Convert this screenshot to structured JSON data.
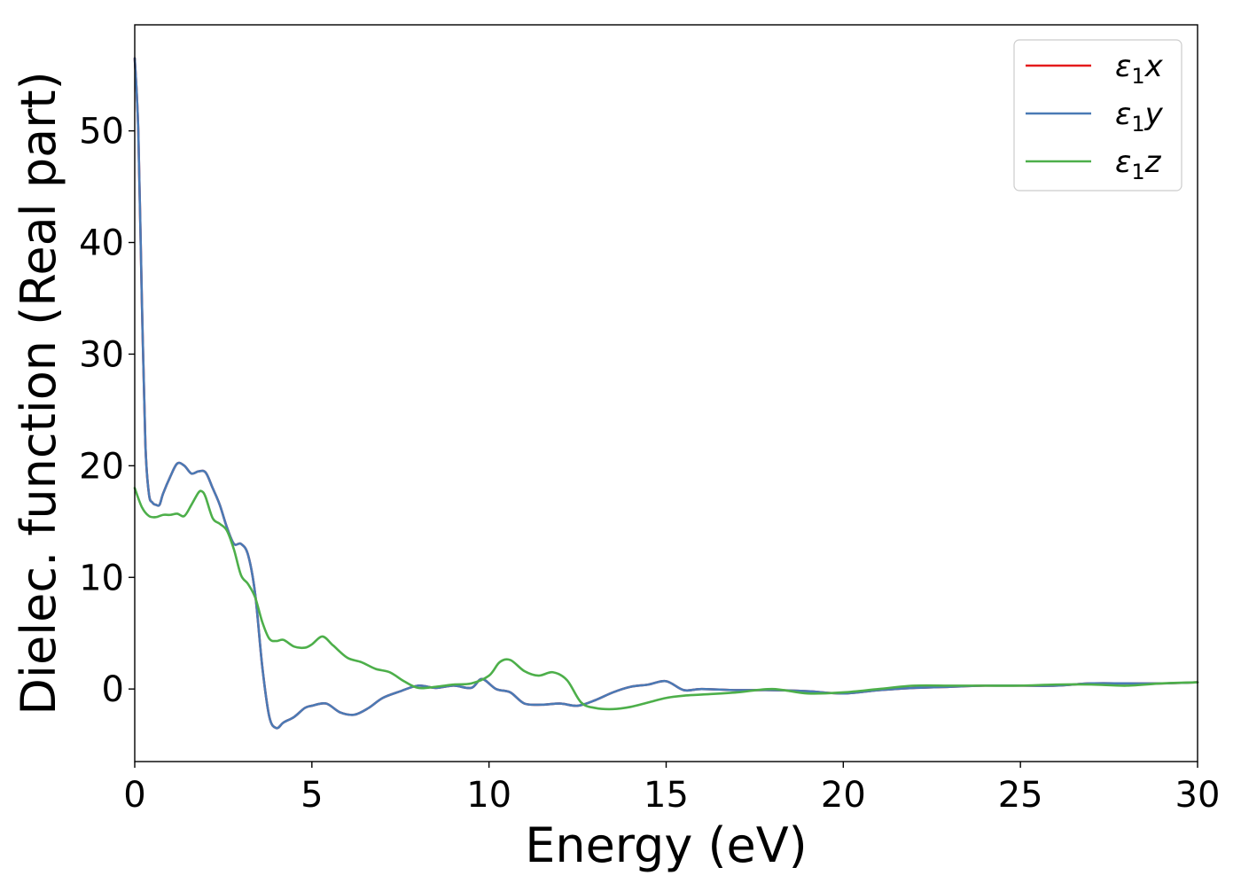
{
  "chart_data": {
    "type": "line",
    "title": "",
    "xlabel": "Energy (eV)",
    "ylabel": "Dielec. function (Real part)",
    "xlim": [
      0,
      30
    ],
    "ylim": [
      -6.5,
      59.5
    ],
    "xticks": [
      0,
      5,
      10,
      15,
      20,
      25,
      30
    ],
    "yticks": [
      0,
      10,
      20,
      30,
      40,
      50
    ],
    "grid": false,
    "legend_position": "top-right",
    "series": [
      {
        "name": "ε1x",
        "legend": {
          "main": "ε",
          "sub": "1",
          "axis": "x"
        },
        "color": "#e41a1c",
        "x": [
          0,
          0.1,
          0.2,
          0.3,
          0.4,
          0.5,
          0.6,
          0.7,
          0.8,
          1.0,
          1.2,
          1.4,
          1.6,
          1.8,
          2.0,
          2.2,
          2.4,
          2.6,
          2.8,
          3.0,
          3.2,
          3.4,
          3.6,
          3.8,
          4.0,
          4.2,
          4.5,
          4.8,
          5.0,
          5.4,
          5.8,
          6.2,
          6.6,
          7.0,
          7.5,
          8.0,
          8.5,
          9.0,
          9.5,
          9.8,
          10.2,
          10.6,
          11.0,
          11.5,
          12.0,
          12.5,
          13.0,
          13.5,
          14.0,
          14.5,
          15.0,
          15.5,
          16.0,
          17.0,
          18.0,
          19.0,
          20.0,
          21.0,
          22.0,
          23.0,
          24.0,
          25.0,
          26.0,
          27.0,
          28.0,
          29.0,
          30.0
        ],
        "y": [
          56.5,
          50,
          35,
          22,
          17.5,
          16.7,
          16.5,
          16.5,
          17.5,
          19.0,
          20.2,
          20.0,
          19.3,
          19.5,
          19.4,
          18.0,
          16.5,
          14.5,
          13.0,
          13.0,
          12.0,
          8.5,
          2.0,
          -2.5,
          -3.5,
          -3.0,
          -2.5,
          -1.7,
          -1.5,
          -1.3,
          -2.1,
          -2.3,
          -1.7,
          -0.8,
          -0.2,
          0.3,
          0.1,
          0.3,
          0.1,
          0.9,
          0.0,
          -0.3,
          -1.3,
          -1.4,
          -1.3,
          -1.5,
          -1.0,
          -0.3,
          0.2,
          0.4,
          0.7,
          -0.1,
          0.0,
          -0.1,
          -0.1,
          -0.2,
          -0.4,
          -0.1,
          0.1,
          0.2,
          0.3,
          0.3,
          0.3,
          0.5,
          0.5,
          0.5,
          0.6
        ]
      },
      {
        "name": "ε1y",
        "legend": {
          "main": "ε",
          "sub": "1",
          "axis": "y"
        },
        "color": "#4a7ab5",
        "x": [
          0,
          0.1,
          0.2,
          0.3,
          0.4,
          0.5,
          0.6,
          0.7,
          0.8,
          1.0,
          1.2,
          1.4,
          1.6,
          1.8,
          2.0,
          2.2,
          2.4,
          2.6,
          2.8,
          3.0,
          3.2,
          3.4,
          3.6,
          3.8,
          4.0,
          4.2,
          4.5,
          4.8,
          5.0,
          5.4,
          5.8,
          6.2,
          6.6,
          7.0,
          7.5,
          8.0,
          8.5,
          9.0,
          9.5,
          9.8,
          10.2,
          10.6,
          11.0,
          11.5,
          12.0,
          12.5,
          13.0,
          13.5,
          14.0,
          14.5,
          15.0,
          15.5,
          16.0,
          17.0,
          18.0,
          19.0,
          20.0,
          21.0,
          22.0,
          23.0,
          24.0,
          25.0,
          26.0,
          27.0,
          28.0,
          29.0,
          30.0
        ],
        "y": [
          56.5,
          50,
          35,
          22,
          17.5,
          16.7,
          16.5,
          16.5,
          17.5,
          19.0,
          20.2,
          20.0,
          19.3,
          19.5,
          19.4,
          18.0,
          16.5,
          14.5,
          13.0,
          13.0,
          12.0,
          8.5,
          2.0,
          -2.5,
          -3.5,
          -3.0,
          -2.5,
          -1.7,
          -1.5,
          -1.3,
          -2.1,
          -2.3,
          -1.7,
          -0.8,
          -0.2,
          0.3,
          0.1,
          0.3,
          0.1,
          0.9,
          0.0,
          -0.3,
          -1.3,
          -1.4,
          -1.3,
          -1.5,
          -1.0,
          -0.3,
          0.2,
          0.4,
          0.7,
          -0.1,
          0.0,
          -0.1,
          -0.1,
          -0.2,
          -0.4,
          -0.1,
          0.1,
          0.2,
          0.3,
          0.3,
          0.3,
          0.5,
          0.5,
          0.5,
          0.6
        ]
      },
      {
        "name": "ε1z",
        "legend": {
          "main": "ε",
          "sub": "1",
          "axis": "z"
        },
        "color": "#4daf4a",
        "x": [
          0,
          0.2,
          0.4,
          0.6,
          0.8,
          1.0,
          1.2,
          1.4,
          1.6,
          1.8,
          1.9,
          2.0,
          2.2,
          2.4,
          2.6,
          2.8,
          3.0,
          3.2,
          3.4,
          3.6,
          3.8,
          4.0,
          4.2,
          4.5,
          4.8,
          5.0,
          5.3,
          5.6,
          6.0,
          6.4,
          6.8,
          7.2,
          7.6,
          8.0,
          8.5,
          9.0,
          9.5,
          10.0,
          10.3,
          10.6,
          11.0,
          11.4,
          11.8,
          12.2,
          12.6,
          13.0,
          13.5,
          14.0,
          14.5,
          15.0,
          15.5,
          16.0,
          17.0,
          18.0,
          19.0,
          20.0,
          21.0,
          22.0,
          23.0,
          24.0,
          25.0,
          26.0,
          27.0,
          28.0,
          29.0,
          30.0
        ],
        "y": [
          18.0,
          16.3,
          15.5,
          15.4,
          15.6,
          15.6,
          15.7,
          15.5,
          16.5,
          17.6,
          17.7,
          17.2,
          15.3,
          14.8,
          14.2,
          12.5,
          10.2,
          9.4,
          8.2,
          6.0,
          4.5,
          4.3,
          4.4,
          3.8,
          3.7,
          4.0,
          4.7,
          3.9,
          2.8,
          2.4,
          1.8,
          1.5,
          0.7,
          0.1,
          0.2,
          0.4,
          0.5,
          1.2,
          2.4,
          2.6,
          1.6,
          1.2,
          1.5,
          0.8,
          -1.2,
          -1.7,
          -1.8,
          -1.6,
          -1.2,
          -0.8,
          -0.6,
          -0.5,
          -0.3,
          0.0,
          -0.4,
          -0.3,
          0.0,
          0.3,
          0.3,
          0.3,
          0.3,
          0.4,
          0.4,
          0.3,
          0.5,
          0.6
        ]
      }
    ]
  }
}
